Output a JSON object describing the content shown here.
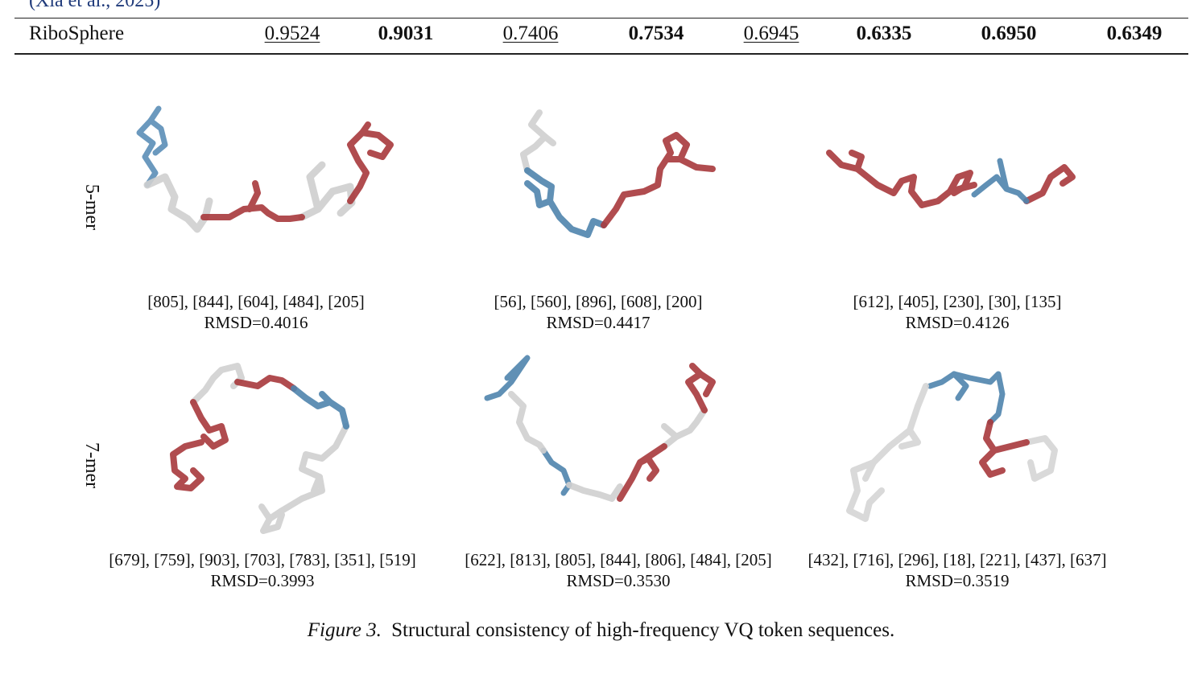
{
  "citation": "(Xia et al., 2025)",
  "table_row": {
    "label": "RiboSphere",
    "cells": [
      {
        "value": "0.9524",
        "style": "underline"
      },
      {
        "value": "0.9031",
        "style": "bold"
      },
      {
        "value": "0.7406",
        "style": "underline"
      },
      {
        "value": "0.7534",
        "style": "bold"
      },
      {
        "value": "0.6945",
        "style": "underline"
      },
      {
        "value": "0.6335",
        "style": "bold"
      },
      {
        "value": "0.6950",
        "style": "bold"
      },
      {
        "value": "0.6349",
        "style": "bold"
      }
    ]
  },
  "rows": [
    {
      "label": "5-mer"
    },
    {
      "label": "7-mer"
    }
  ],
  "panels": [
    {
      "tokens": "[805], [844], [604], [484], [205]",
      "rmsd": "RMSD=0.4016"
    },
    {
      "tokens": "[56], [560], [896], [608], [200]",
      "rmsd": "RMSD=0.4417"
    },
    {
      "tokens": "[612], [405], [230], [30], [135]",
      "rmsd": "RMSD=0.4126"
    },
    {
      "tokens": "[679], [759], [903], [703], [783], [351], [519]",
      "rmsd": "RMSD=0.3993"
    },
    {
      "tokens": "[622], [813], [805], [844], [806], [484], [205]",
      "rmsd": "RMSD=0.3530"
    },
    {
      "tokens": "[432], [716], [296], [18], [221], [437], [637]",
      "rmsd": "RMSD=0.3519"
    }
  ],
  "colors": {
    "red": "#a8393c",
    "blue": "#4f84ad",
    "grey": "#d6d6d6"
  },
  "figure_caption": {
    "label": "Figure 3.",
    "text": "Structural consistency of high-frequency VQ token sequences."
  }
}
